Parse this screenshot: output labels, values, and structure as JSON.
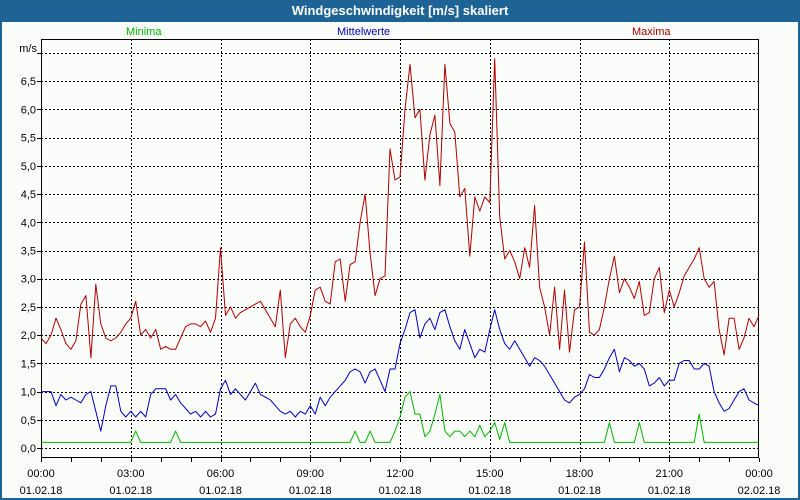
{
  "window": {
    "title": "Windgeschwindigkeit [m/s] skaliert",
    "titlebar_color": "#1e6396",
    "border_color": "#1e6396",
    "background_color": "#fbfdfa"
  },
  "legend": {
    "items": [
      {
        "label": "Minima",
        "color": "#00b400"
      },
      {
        "label": "Mittelwerte",
        "color": "#0000b4"
      },
      {
        "label": "Maxima",
        "color": "#a00000"
      }
    ]
  },
  "chart_data": {
    "type": "line",
    "title": "Windgeschwindigkeit [m/s] skaliert",
    "y_unit": "m/s",
    "ylim": [
      0,
      7.25
    ],
    "y_gridline_step": 0.5,
    "y_gridline_max": 7.0,
    "y_tick_labels": [
      "0,0",
      "0,5",
      "1,0",
      "1,5",
      "2,0",
      "2,5",
      "3,0",
      "3,5",
      "4,0",
      "4,5",
      "5,0",
      "5,5",
      "6,0",
      "6,5"
    ],
    "grid": "dashed",
    "x_hours_total": 24,
    "x_interval_minutes": 10,
    "x_minor_tick_every_hours": 1,
    "x_major_ticks": [
      {
        "hour": 0,
        "time": "00:00",
        "date": "01.02.18"
      },
      {
        "hour": 3,
        "time": "03:00",
        "date": "01.02.18"
      },
      {
        "hour": 6,
        "time": "06:00",
        "date": "01.02.18"
      },
      {
        "hour": 9,
        "time": "09:00",
        "date": "01.02.18"
      },
      {
        "hour": 12,
        "time": "12:00",
        "date": "01.02.18"
      },
      {
        "hour": 15,
        "time": "15:00",
        "date": "01.02.18"
      },
      {
        "hour": 18,
        "time": "18:00",
        "date": "01.02.18"
      },
      {
        "hour": 21,
        "time": "21:00",
        "date": "01.02.18"
      },
      {
        "hour": 24,
        "time": "00:00",
        "date": "02.02.18"
      }
    ],
    "series": [
      {
        "name": "Minima",
        "color": "#00b400",
        "values": [
          0.1,
          0.1,
          0.1,
          0.1,
          0.1,
          0.1,
          0.1,
          0.1,
          0.1,
          0.1,
          0.1,
          0.1,
          0.1,
          0.1,
          0.1,
          0.1,
          0.1,
          0.1,
          0.1,
          0.3,
          0.1,
          0.1,
          0.1,
          0.1,
          0.1,
          0.1,
          0.1,
          0.3,
          0.1,
          0.1,
          0.1,
          0.1,
          0.1,
          0.1,
          0.1,
          0.1,
          0.1,
          0.1,
          0.1,
          0.1,
          0.1,
          0.1,
          0.1,
          0.1,
          0.1,
          0.1,
          0.1,
          0.1,
          0.1,
          0.1,
          0.1,
          0.1,
          0.1,
          0.1,
          0.1,
          0.1,
          0.1,
          0.1,
          0.1,
          0.1,
          0.1,
          0.1,
          0.1,
          0.3,
          0.1,
          0.1,
          0.3,
          0.1,
          0.1,
          0.1,
          0.1,
          0.3,
          0.55,
          0.9,
          1.0,
          0.6,
          0.6,
          0.2,
          0.3,
          0.6,
          0.95,
          0.3,
          0.2,
          0.3,
          0.3,
          0.2,
          0.3,
          0.2,
          0.4,
          0.2,
          0.3,
          0.45,
          0.15,
          0.45,
          0.1,
          0.1,
          0.1,
          0.1,
          0.1,
          0.1,
          0.1,
          0.1,
          0.1,
          0.1,
          0.1,
          0.1,
          0.1,
          0.1,
          0.1,
          0.1,
          0.1,
          0.1,
          0.1,
          0.1,
          0.45,
          0.1,
          0.1,
          0.1,
          0.1,
          0.1,
          0.45,
          0.1,
          0.1,
          0.1,
          0.1,
          0.1,
          0.1,
          0.1,
          0.1,
          0.1,
          0.1,
          0.1,
          0.6,
          0.1,
          0.1,
          0.1,
          0.1,
          0.1,
          0.1,
          0.1,
          0.1,
          0.1,
          0.1,
          0.1,
          0.1
        ]
      },
      {
        "name": "Mittelwerte",
        "color": "#0000c0",
        "values": [
          1.0,
          1.0,
          1.0,
          0.75,
          0.95,
          0.85,
          0.9,
          0.85,
          0.8,
          0.95,
          1.0,
          0.65,
          0.3,
          0.75,
          1.1,
          1.1,
          0.65,
          0.55,
          0.65,
          0.55,
          0.65,
          0.55,
          0.95,
          1.05,
          1.05,
          1.05,
          0.85,
          0.95,
          0.8,
          0.7,
          0.6,
          0.65,
          0.55,
          0.65,
          0.55,
          0.6,
          1.05,
          1.2,
          0.95,
          1.05,
          0.95,
          0.85,
          1.0,
          1.15,
          0.95,
          0.9,
          0.85,
          0.75,
          0.65,
          0.6,
          0.65,
          0.55,
          0.65,
          0.6,
          0.75,
          0.6,
          0.9,
          0.75,
          0.9,
          1.0,
          1.1,
          1.2,
          1.35,
          1.4,
          1.35,
          1.15,
          1.35,
          1.4,
          1.2,
          1.0,
          1.4,
          1.4,
          1.85,
          2.1,
          2.4,
          2.45,
          1.95,
          2.2,
          2.3,
          2.1,
          2.4,
          2.45,
          2.15,
          1.9,
          1.75,
          2.1,
          1.85,
          1.6,
          1.75,
          1.7,
          2.1,
          2.45,
          2.1,
          1.85,
          1.75,
          1.9,
          1.75,
          1.6,
          1.45,
          1.6,
          1.55,
          1.45,
          1.3,
          1.15,
          1.0,
          0.85,
          0.8,
          0.9,
          0.95,
          1.05,
          1.3,
          1.25,
          1.25,
          1.4,
          1.6,
          1.75,
          1.35,
          1.6,
          1.55,
          1.45,
          1.5,
          1.4,
          1.1,
          1.15,
          1.25,
          1.1,
          1.2,
          1.2,
          1.5,
          1.55,
          1.55,
          1.4,
          1.4,
          1.5,
          1.45,
          1.0,
          0.8,
          0.65,
          0.7,
          0.85,
          1.0,
          1.05,
          0.85,
          0.8,
          0.75
        ]
      },
      {
        "name": "Maxima",
        "color": "#b00000",
        "values": [
          1.95,
          1.85,
          2.0,
          2.3,
          2.1,
          1.85,
          1.75,
          1.9,
          2.55,
          2.7,
          1.6,
          2.9,
          2.2,
          1.95,
          1.9,
          1.95,
          2.05,
          2.2,
          2.3,
          2.6,
          2.0,
          2.1,
          1.95,
          2.1,
          1.75,
          1.8,
          1.75,
          1.75,
          1.95,
          2.15,
          2.2,
          2.2,
          2.15,
          2.25,
          2.05,
          2.3,
          3.55,
          2.35,
          2.5,
          2.3,
          2.4,
          2.45,
          2.5,
          2.55,
          2.6,
          2.45,
          2.3,
          2.15,
          2.8,
          1.6,
          2.2,
          2.3,
          2.15,
          2.05,
          2.35,
          2.8,
          2.85,
          2.6,
          2.55,
          3.3,
          3.35,
          2.6,
          3.25,
          3.3,
          4.0,
          4.5,
          3.45,
          2.7,
          3.0,
          3.05,
          5.3,
          4.75,
          4.8,
          6.0,
          6.8,
          5.85,
          6.0,
          4.75,
          5.55,
          5.9,
          4.65,
          6.8,
          5.75,
          5.6,
          4.45,
          4.6,
          3.4,
          4.45,
          4.2,
          4.45,
          4.35,
          6.9,
          4.1,
          3.35,
          3.5,
          3.3,
          3.0,
          3.55,
          3.2,
          4.3,
          2.85,
          2.5,
          2.0,
          2.85,
          1.75,
          2.8,
          1.7,
          2.45,
          2.5,
          3.65,
          2.05,
          2.0,
          2.1,
          2.5,
          3.0,
          3.4,
          2.75,
          3.0,
          2.85,
          2.65,
          2.95,
          2.35,
          2.4,
          3.0,
          3.2,
          2.4,
          2.8,
          2.5,
          2.75,
          3.05,
          3.2,
          3.35,
          3.55,
          3.0,
          2.85,
          2.95,
          2.1,
          1.65,
          2.3,
          2.3,
          1.75,
          1.95,
          2.3,
          2.15,
          2.35
        ]
      }
    ]
  }
}
